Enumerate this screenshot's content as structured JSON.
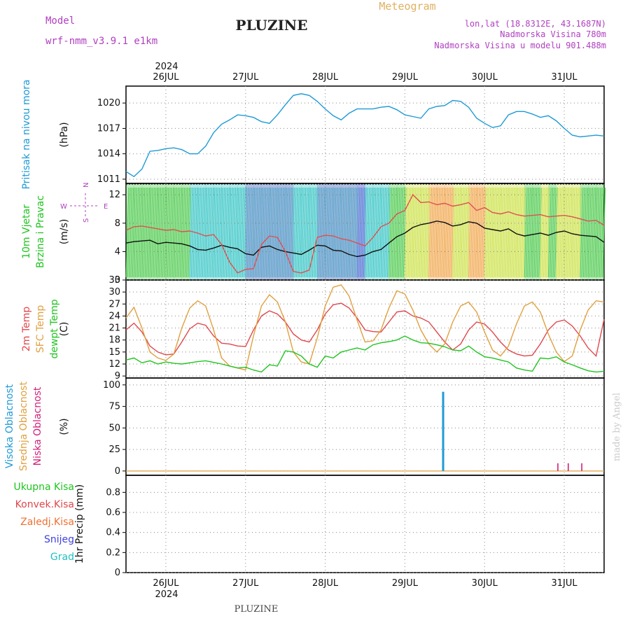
{
  "header": {
    "title": "PLUZINE",
    "model_label": "Model",
    "model_value": "wrf-nmm_v3.9.1  e1km",
    "meteogram_label": "Meteogram",
    "coords": "lon,lat (18.8312E, 43.1687N)",
    "altitude": "Nadmorska Visina 780m",
    "model_altitude": "Nadmorska Visina u modelu 901.488m"
  },
  "footer": {
    "station": "PLUZINE",
    "credit": "made by Angel"
  },
  "time_axis": {
    "year": "2024",
    "days": [
      "26JUL",
      "27JUL",
      "28JUL",
      "29JUL",
      "30JUL",
      "31JUL"
    ]
  },
  "colors": {
    "pressure": "#1e9ad6",
    "temp2m": "#e0474c",
    "sfc_temp": "#e0a040",
    "dewpt": "#1fc41f",
    "high_cloud": "#1e9ad6",
    "mid_cloud": "#e0a040",
    "low_cloud": "#d0207a",
    "title": "#222222",
    "purple_text": "#b040c0",
    "meteogram": "#e0b060"
  },
  "chart_data": [
    {
      "type": "line",
      "panel": "pressure",
      "ylabel_left": "Pritisak na nivou mora",
      "ylabel_right": "(hPa)",
      "yticks": [
        1011,
        1014,
        1017,
        1020
      ],
      "ylim": [
        1010.5,
        1022
      ],
      "xlim": [
        -0.5,
        5.5
      ],
      "grid": true,
      "series": [
        {
          "x": [
            -0.5,
            -0.4,
            -0.3,
            -0.2,
            -0.1,
            0.0,
            0.1,
            0.2,
            0.3,
            0.4,
            0.5,
            0.6,
            0.7,
            0.8,
            0.9,
            1.0,
            1.1,
            1.2,
            1.3,
            1.4,
            1.5,
            1.6,
            1.7,
            1.8,
            1.9,
            2.0,
            2.1,
            2.2,
            2.3,
            2.4,
            2.5,
            2.6,
            2.7,
            2.8,
            2.9,
            3.0,
            3.1,
            3.2,
            3.3,
            3.4,
            3.5,
            3.6,
            3.7,
            3.8,
            3.9,
            4.0,
            4.1,
            4.2,
            4.3,
            4.4,
            4.5,
            4.6,
            4.7,
            4.8,
            4.9,
            5.0,
            5.1,
            5.2,
            5.3,
            5.4,
            5.5
          ],
          "values": [
            1011.9,
            1011.3,
            1012.2,
            1014.3,
            1014.4,
            1014.6,
            1014.7,
            1014.5,
            1014.0,
            1014.0,
            1014.9,
            1016.5,
            1017.5,
            1018.0,
            1018.6,
            1018.5,
            1018.3,
            1017.8,
            1017.6,
            1018.6,
            1019.8,
            1020.9,
            1021.1,
            1020.9,
            1020.2,
            1019.3,
            1018.5,
            1018.0,
            1018.8,
            1019.3,
            1019.3,
            1019.3,
            1019.5,
            1019.6,
            1019.2,
            1018.6,
            1018.4,
            1018.2,
            1019.3,
            1019.6,
            1019.7,
            1020.3,
            1020.2,
            1019.5,
            1018.2,
            1017.6,
            1017.1,
            1017.3,
            1018.6,
            1019.0,
            1019.0,
            1018.7,
            1018.3,
            1018.5,
            1017.9,
            1017.0,
            1016.2,
            1016.0,
            1016.1,
            1016.2,
            1016.1
          ]
        }
      ]
    },
    {
      "type": "line",
      "panel": "wind",
      "ylabel_left": [
        "10m Vjetar",
        "Brzina i Pravac"
      ],
      "ylabel_right": "(m/s)",
      "compass": [
        "N",
        "S",
        "W",
        "E"
      ],
      "yticks": [
        0,
        4,
        8,
        12
      ],
      "ylim": [
        0,
        13.6
      ],
      "xlim": [
        -0.5,
        5.5
      ],
      "grid": true,
      "series": [
        {
          "name": "wind speed",
          "x": [
            -0.5,
            -0.4,
            -0.3,
            -0.2,
            -0.1,
            0.0,
            0.1,
            0.2,
            0.3,
            0.4,
            0.5,
            0.6,
            0.7,
            0.8,
            0.9,
            1.0,
            1.1,
            1.2,
            1.3,
            1.4,
            1.5,
            1.6,
            1.7,
            1.8,
            1.9,
            2.0,
            2.1,
            2.2,
            2.3,
            2.4,
            2.5,
            2.6,
            2.7,
            2.8,
            2.9,
            3.0,
            3.1,
            3.2,
            3.3,
            3.4,
            3.5,
            3.6,
            3.7,
            3.8,
            3.9,
            4.0,
            4.1,
            4.2,
            4.3,
            4.4,
            4.5,
            4.6,
            4.7,
            4.8,
            4.9,
            5.0,
            5.1,
            5.2,
            5.3,
            5.4,
            5.5
          ],
          "values": [
            5.2,
            5.4,
            5.5,
            5.6,
            5.1,
            5.3,
            5.2,
            5.1,
            4.8,
            4.3,
            4.2,
            4.5,
            4.9,
            4.6,
            4.4,
            3.7,
            3.5,
            4.6,
            4.8,
            4.3,
            4.0,
            3.8,
            3.6,
            4.2,
            4.9,
            4.8,
            4.2,
            4.1,
            3.6,
            3.3,
            3.5,
            4.0,
            4.3,
            5.2,
            6.1,
            6.6,
            7.4,
            7.8,
            8.0,
            8.3,
            8.1,
            7.6,
            7.8,
            8.2,
            8.0,
            7.3,
            7.1,
            6.9,
            7.2,
            6.5,
            6.2,
            6.4,
            6.6,
            6.3,
            6.7,
            6.9,
            6.5,
            6.3,
            6.2,
            6.1,
            5.3
          ]
        },
        {
          "name": "gust",
          "x": [
            -0.5,
            -0.4,
            -0.3,
            -0.2,
            -0.1,
            0.0,
            0.1,
            0.2,
            0.3,
            0.4,
            0.5,
            0.6,
            0.7,
            0.8,
            0.9,
            1.0,
            1.1,
            1.2,
            1.3,
            1.4,
            1.5,
            1.6,
            1.7,
            1.8,
            1.9,
            2.0,
            2.1,
            2.2,
            2.3,
            2.4,
            2.5,
            2.6,
            2.7,
            2.8,
            2.9,
            3.0,
            3.1,
            3.2,
            3.3,
            3.4,
            3.5,
            3.6,
            3.7,
            3.8,
            3.9,
            4.0,
            4.1,
            4.2,
            4.3,
            4.4,
            4.5,
            4.6,
            4.7,
            4.8,
            4.9,
            5.0,
            5.1,
            5.2,
            5.3,
            5.4,
            5.5
          ],
          "values": [
            7.0,
            7.5,
            7.6,
            7.4,
            7.2,
            7.0,
            7.1,
            6.8,
            6.9,
            6.6,
            6.2,
            6.4,
            5.0,
            2.5,
            1.0,
            1.5,
            1.6,
            5.0,
            6.2,
            6.0,
            4.0,
            1.2,
            1.0,
            1.4,
            6.0,
            6.3,
            6.2,
            5.8,
            5.6,
            5.2,
            4.8,
            6.0,
            7.5,
            8.0,
            9.3,
            9.8,
            12.0,
            10.9,
            11.0,
            10.6,
            10.8,
            10.4,
            10.6,
            10.9,
            9.8,
            10.2,
            9.5,
            9.3,
            9.6,
            9.2,
            9.0,
            9.1,
            9.2,
            8.9,
            9.0,
            9.1,
            8.9,
            8.6,
            8.3,
            8.4,
            7.7
          ]
        }
      ]
    },
    {
      "type": "line",
      "panel": "temperature",
      "ylabel_left": [
        "2m Temp",
        "SFC Temp",
        "dewpt Temp"
      ],
      "ylabel_right": "(C)",
      "yticks": [
        9,
        12,
        15,
        18,
        21,
        24,
        27,
        30,
        33
      ],
      "ylim": [
        8.5,
        33
      ],
      "xlim": [
        -0.5,
        5.5
      ],
      "grid": true,
      "series": [
        {
          "name": "2m Temp",
          "x": [
            -0.5,
            -0.4,
            -0.3,
            -0.2,
            -0.1,
            0.0,
            0.1,
            0.2,
            0.3,
            0.4,
            0.5,
            0.6,
            0.7,
            0.8,
            0.9,
            1.0,
            1.1,
            1.2,
            1.3,
            1.4,
            1.5,
            1.6,
            1.7,
            1.8,
            1.9,
            2.0,
            2.1,
            2.2,
            2.3,
            2.4,
            2.5,
            2.6,
            2.7,
            2.8,
            2.9,
            3.0,
            3.1,
            3.2,
            3.3,
            3.4,
            3.5,
            3.6,
            3.7,
            3.8,
            3.9,
            4.0,
            4.1,
            4.2,
            4.3,
            4.4,
            4.5,
            4.6,
            4.7,
            4.8,
            4.9,
            5.0,
            5.1,
            5.2,
            5.3,
            5.4,
            5.5
          ],
          "values": [
            20.5,
            22.2,
            20.0,
            16.5,
            15.0,
            14.3,
            14.5,
            17.5,
            20.8,
            22.2,
            21.7,
            19.0,
            17.2,
            17.0,
            16.5,
            16.4,
            20.5,
            24.0,
            25.3,
            24.5,
            22.5,
            19.5,
            18.0,
            17.5,
            20.5,
            24.5,
            26.8,
            27.2,
            26.0,
            23.5,
            20.5,
            20.1,
            20.0,
            22.5,
            25.0,
            25.3,
            24.0,
            23.5,
            22.5,
            20.0,
            17.5,
            15.5,
            17.0,
            20.5,
            22.5,
            22.0,
            20.0,
            17.5,
            15.5,
            14.5,
            14.0,
            14.2,
            17.0,
            20.5,
            22.5,
            23.0,
            21.5,
            19.0,
            16.0,
            14.0,
            23.2
          ]
        },
        {
          "name": "SFC Temp",
          "x": [
            -0.5,
            -0.4,
            -0.3,
            -0.2,
            -0.1,
            0.0,
            0.1,
            0.2,
            0.3,
            0.4,
            0.5,
            0.6,
            0.7,
            0.8,
            0.9,
            1.0,
            1.1,
            1.2,
            1.3,
            1.4,
            1.5,
            1.6,
            1.7,
            1.8,
            1.9,
            2.0,
            2.1,
            2.2,
            2.3,
            2.4,
            2.5,
            2.6,
            2.7,
            2.8,
            2.9,
            3.0,
            3.1,
            3.2,
            3.3,
            3.4,
            3.5,
            3.6,
            3.7,
            3.8,
            3.9,
            4.0,
            4.1,
            4.2,
            4.3,
            4.4,
            4.5,
            4.6,
            4.7,
            4.8,
            4.9,
            5.0,
            5.1,
            5.2,
            5.3,
            5.4,
            5.5
          ],
          "values": [
            23.5,
            26.2,
            21.0,
            15.0,
            13.5,
            12.9,
            14.5,
            21.0,
            26.0,
            27.8,
            26.5,
            20.5,
            13.5,
            11.5,
            11.0,
            10.5,
            19.0,
            26.5,
            29.3,
            27.5,
            22.5,
            15.0,
            12.5,
            12.0,
            18.5,
            26.5,
            31.2,
            31.8,
            29.0,
            23.0,
            17.5,
            17.8,
            20.5,
            26.0,
            30.3,
            29.5,
            25.5,
            20.5,
            17.0,
            15.0,
            17.0,
            22.5,
            26.5,
            27.5,
            25.0,
            20.0,
            15.5,
            14.0,
            16.5,
            22.0,
            26.5,
            27.5,
            25.0,
            19.5,
            15.0,
            12.6,
            14.0,
            20.5,
            25.5,
            27.8,
            27.5
          ]
        },
        {
          "name": "dewpt Temp",
          "x": [
            -0.5,
            -0.4,
            -0.3,
            -0.2,
            -0.1,
            0.0,
            0.1,
            0.2,
            0.3,
            0.4,
            0.5,
            0.6,
            0.7,
            0.8,
            0.9,
            1.0,
            1.1,
            1.2,
            1.3,
            1.4,
            1.5,
            1.6,
            1.7,
            1.8,
            1.9,
            2.0,
            2.1,
            2.2,
            2.3,
            2.4,
            2.5,
            2.6,
            2.7,
            2.8,
            2.9,
            3.0,
            3.1,
            3.2,
            3.3,
            3.4,
            3.5,
            3.6,
            3.7,
            3.8,
            3.9,
            4.0,
            4.1,
            4.2,
            4.3,
            4.4,
            4.5,
            4.6,
            4.7,
            4.8,
            4.9,
            5.0,
            5.1,
            5.2,
            5.3,
            5.4,
            5.5
          ],
          "values": [
            13.0,
            13.5,
            12.3,
            12.8,
            12.0,
            12.5,
            12.2,
            12.0,
            12.3,
            12.6,
            12.8,
            12.4,
            12.0,
            11.5,
            11.0,
            11.2,
            10.5,
            10.0,
            11.8,
            11.5,
            15.3,
            15.0,
            14.0,
            12.0,
            11.2,
            14.0,
            13.5,
            15.0,
            15.5,
            16.0,
            15.5,
            16.8,
            17.3,
            17.6,
            18.0,
            19.0,
            18.0,
            17.3,
            17.2,
            16.8,
            16.3,
            15.5,
            15.3,
            16.5,
            15.0,
            13.8,
            13.5,
            13.0,
            12.5,
            11.0,
            10.5,
            10.2,
            13.5,
            13.3,
            13.8,
            12.5,
            11.8,
            11.0,
            10.3,
            10.0,
            10.2
          ]
        }
      ]
    },
    {
      "type": "bar",
      "panel": "clouds",
      "ylabel_left": [
        "Visoka Oblacnost",
        "Srednja Oblacnost",
        "Niska Oblacnost"
      ],
      "ylabel_right": "(%)",
      "yticks": [
        0,
        25,
        50,
        75,
        100
      ],
      "ylim": [
        -5,
        108
      ],
      "xlim": [
        -0.5,
        5.5
      ],
      "grid": true,
      "series": [
        {
          "name": "Visoka Oblacnost",
          "x": [
            3.48
          ],
          "values": [
            92
          ]
        },
        {
          "name": "Niska Oblacnost",
          "x": [
            4.92,
            5.05,
            5.22
          ],
          "values": [
            9,
            9,
            9
          ]
        }
      ]
    },
    {
      "type": "bar",
      "panel": "precipitation",
      "ylabel_right": "1hr Precip (mm)",
      "legend": [
        "Ukupna Kisa",
        "Konvek.Kisa",
        "Zaledj.Kisa",
        "Snijeg",
        "Grad"
      ],
      "yticks": [
        0,
        0.2,
        0.4,
        0.6,
        0.8
      ],
      "ylim": [
        0,
        0.97
      ],
      "xlim": [
        -0.5,
        5.5
      ],
      "grid": true,
      "series": []
    }
  ]
}
